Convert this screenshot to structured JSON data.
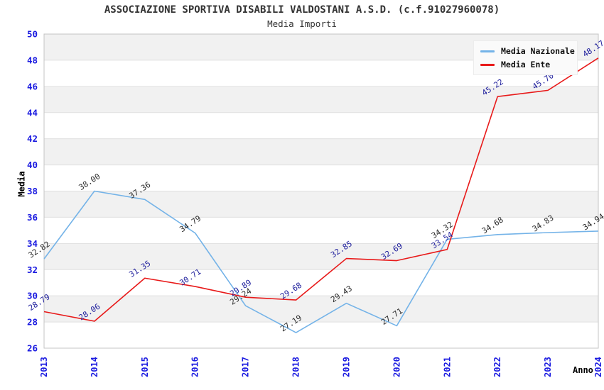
{
  "chart_data": {
    "type": "line",
    "title": "ASSOCIAZIONE SPORTIVA DISABILI VALDOSTANI A.S.D. (c.f.91027960078)",
    "subtitle": "Media Importi",
    "xlabel": "Anno",
    "ylabel": "Media",
    "x": [
      "2013",
      "2014",
      "2015",
      "2016",
      "2017",
      "2018",
      "2019",
      "2020",
      "2021",
      "2022",
      "2023",
      "2024"
    ],
    "ylim": [
      26,
      50
    ],
    "ytick_step": 2,
    "grid": true,
    "legend_position": "top-right",
    "series": [
      {
        "name": "Media Nazionale",
        "color": "#74b3e8",
        "label_color": "#2a2a2a",
        "values": [
          32.82,
          38.0,
          37.36,
          34.79,
          29.24,
          27.19,
          29.43,
          27.71,
          34.32,
          34.68,
          34.83,
          34.94
        ]
      },
      {
        "name": "Media Ente",
        "color": "#e81a1a",
        "label_color": "#22229e",
        "values": [
          28.79,
          28.06,
          31.35,
          30.71,
          29.89,
          29.68,
          32.85,
          32.69,
          33.54,
          45.22,
          45.7,
          48.17
        ]
      }
    ],
    "colors": {
      "band": "#f1f1f1",
      "grid": "#e0e0e0",
      "border": "#c4c4c4",
      "tick_label": "#1a1ae0",
      "axis_title": "#000000",
      "title_text": "#333333",
      "legend_bg": "#fafafa"
    }
  }
}
